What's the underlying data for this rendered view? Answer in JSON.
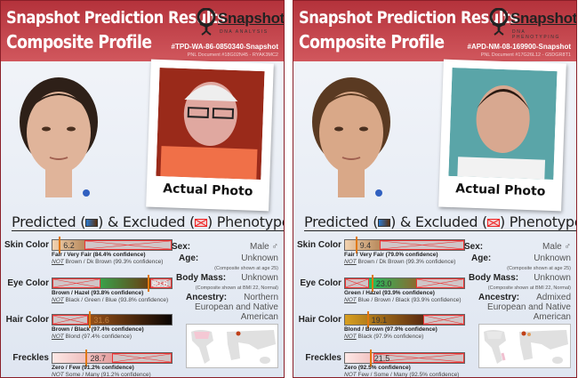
{
  "heading": {
    "predicted": "Predicted (",
    "mid": ") & Excluded (",
    "end": ") Phenotypes"
  },
  "labels": {
    "sex": "Sex:",
    "age": "Age:",
    "body_mass": "Body Mass:",
    "ancestry": "Ancestry:",
    "skin": "Skin Color",
    "eye": "Eye Color",
    "hair": "Hair Color",
    "freckles": "Freckles",
    "not": "NOT"
  },
  "colors": {
    "header": "#c0434a",
    "marker": "#e07810",
    "excluded": "#e33333"
  },
  "panels": [
    {
      "title1": "Snapshot Prediction Results",
      "title2": "Composite Profile",
      "logo_name": "Snapshot",
      "logo_sub": "DNA ANALYSIS",
      "case_id": "#TPD-WA-86-0850340-Snapshot",
      "pnl_doc": "PNL Document #18G02N45 - RYAK3MC2",
      "photo_caption": "Actual Photo",
      "sex": "Male ♂",
      "age": "Unknown",
      "age_note": "(Composite shown at age 25)",
      "body_mass": "Unknown",
      "body_mass_note": "(Composite shown at BMI 22, Normal)",
      "ancestry": "Northern European and Native American",
      "traits": [
        {
          "value": "6.2",
          "marker": 0.062,
          "predicted": [
            0,
            0.27
          ],
          "gradient": [
            "#f2d2b0",
            "#b88a5c"
          ],
          "excluded": [
            [
              0.27,
              1
            ]
          ],
          "pred_text": "Fair / Very Fair (84.4% confidence)",
          "not_text": "Brown / Dk Brown (99.3% confidence)"
        },
        {
          "value": "80.6",
          "marker": 0.806,
          "predicted": [
            0.4,
            0.82
          ],
          "gradient": [
            "#3aa04a",
            "#6a3c12"
          ],
          "excluded": [
            [
              0,
              0.4
            ],
            [
              0.82,
              1
            ]
          ],
          "pred_text": "Brown / Hazel (93.8% confidence)",
          "not_text": "Black / Green / Blue (93.8% confidence)"
        },
        {
          "value": "31.6",
          "marker": 0.316,
          "predicted": [
            0.3,
            1
          ],
          "gradient": [
            "#9a5218",
            "#0a0503"
          ],
          "excluded": [
            [
              0,
              0.3
            ]
          ],
          "pred_text": "Brown / Black (97.4% confidence)",
          "not_text": "Blond (97.4% confidence)"
        },
        {
          "value": "28.7",
          "marker": 0.287,
          "predicted": [
            0,
            0.5
          ],
          "gradient": [
            "#fde8e6",
            "#e4a0a0"
          ],
          "excluded": [
            [
              0.5,
              1
            ]
          ],
          "pred_text": "Zero / Few (91.2% confidence)",
          "not_text": "Some / Many (91.2% confidence)"
        }
      ]
    },
    {
      "title1": "Snapshot Prediction Results",
      "title2": "Composite Profile",
      "logo_name": "Snapshot",
      "logo_sub": "DNA PHENOTYPING",
      "case_id": "#APD-NM-08-169900-Snapshot",
      "pnl_doc": "PNL Document #17G26L12 - G5DGR8T1",
      "photo_caption": "Actual Photo",
      "sex": "Male ♂",
      "age": "Unknown",
      "age_note": "(Composite shown at age 25)",
      "body_mass": "Unknown",
      "body_mass_note": "(Composite shown at BMI 22, Normal)",
      "ancestry": "Admixed European and Native American",
      "traits": [
        {
          "value": "9.4",
          "marker": 0.094,
          "predicted": [
            0,
            0.29
          ],
          "gradient": [
            "#f2d2b0",
            "#b88a5c"
          ],
          "excluded": [
            [
              0.29,
              1
            ]
          ],
          "pred_text": "Fair / Very Fair (79.0% confidence)",
          "not_text": "Brown / Dk Brown (99.3% confidence)"
        },
        {
          "value": "23.0",
          "marker": 0.23,
          "predicted": [
            0.2,
            0.6
          ],
          "gradient": [
            "#20c060",
            "#8a6a30"
          ],
          "excluded": [
            [
              0,
              0.2
            ],
            [
              0.6,
              1
            ]
          ],
          "pred_text": "Green / Hazel (93.9% confidence)",
          "not_text": "Blue / Brown / Black (93.9% confidence)"
        },
        {
          "value": "19.1",
          "marker": 0.191,
          "predicted": [
            0,
            0.66
          ],
          "gradient": [
            "#d8a020",
            "#5a2a10"
          ],
          "excluded": [
            [
              0.66,
              1
            ]
          ],
          "pred_text": "Blond / Brown (97.9% confidence)",
          "not_text": "Black (97.9% confidence)"
        },
        {
          "value": "21.5",
          "marker": 0.215,
          "predicted": [
            0,
            0.24
          ],
          "gradient": [
            "#fde8e6",
            "#f0c0c0"
          ],
          "excluded": [
            [
              0.24,
              1
            ]
          ],
          "pred_text": "Zero (92.5% confidence)",
          "not_text": "Few / Some / Many (92.5% confidence)"
        }
      ]
    }
  ]
}
